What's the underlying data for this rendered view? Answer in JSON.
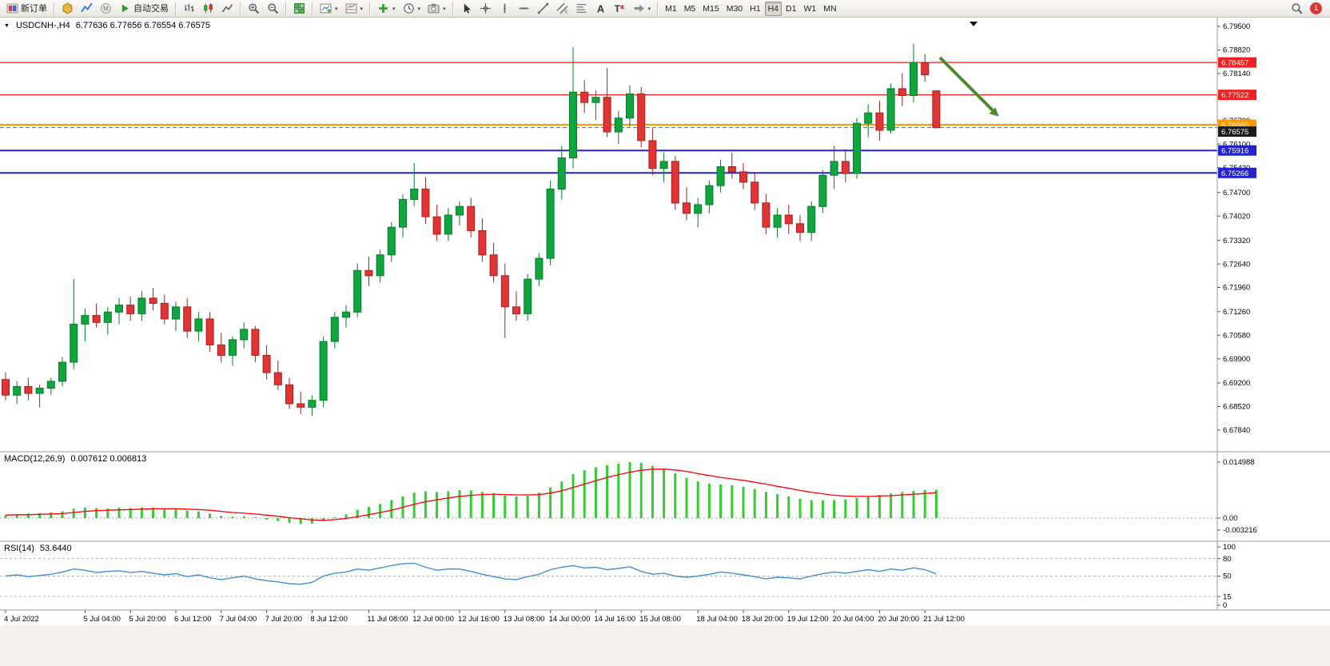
{
  "toolbar": {
    "groups": [
      [
        {
          "name": "new-order-button",
          "icon": "neworder",
          "label": "新订单"
        }
      ],
      [
        {
          "name": "market-button",
          "icon": "market"
        },
        {
          "name": "signals-button",
          "icon": "signals"
        },
        {
          "name": "community-button",
          "icon": "mql"
        },
        {
          "name": "autotrade-button",
          "icon": "play",
          "label": "自动交易"
        }
      ],
      [
        {
          "name": "bar-chart-button",
          "icon": "bars"
        },
        {
          "name": "candlestick-chart-button",
          "icon": "candles"
        },
        {
          "name": "line-chart-button",
          "icon": "linechart"
        }
      ],
      [
        {
          "name": "zoom-in-button",
          "icon": "zoomin"
        },
        {
          "name": "zoom-out-button",
          "icon": "zoomout"
        }
      ],
      [
        {
          "name": "tile-windows-button",
          "icon": "tiles"
        }
      ],
      [
        {
          "name": "new-chart-button",
          "icon": "newchart",
          "dropdown": true
        },
        {
          "name": "profiles-button",
          "icon": "profiles",
          "dropdown": true
        }
      ],
      [
        {
          "name": "add-indicator-button",
          "icon": "plus",
          "dropdown": true
        },
        {
          "name": "periods-button",
          "icon": "clock",
          "dropdown": true
        },
        {
          "name": "template-button",
          "icon": "snapshot",
          "dropdown": true
        }
      ],
      [
        {
          "name": "cursor-button",
          "icon": "cursor"
        },
        {
          "name": "crosshair-button",
          "icon": "crosshair"
        },
        {
          "name": "vertical-line-button",
          "icon": "vline"
        },
        {
          "name": "horizontal-line-button",
          "icon": "hline"
        },
        {
          "name": "trendline-button",
          "icon": "tline"
        },
        {
          "name": "equidistant-channel-button",
          "icon": "channel"
        },
        {
          "name": "fibonacci-button",
          "icon": "fibo"
        },
        {
          "name": "text-button",
          "icon": "text"
        },
        {
          "name": "label-button",
          "icon": "label"
        },
        {
          "name": "shapes-button",
          "icon": "shapes",
          "dropdown": true
        }
      ]
    ],
    "timeframes": [
      "M1",
      "M5",
      "M15",
      "M30",
      "H1",
      "H4",
      "D1",
      "W1",
      "MN"
    ],
    "active_timeframe": "H4",
    "notification_count": "1"
  },
  "chart_data": {
    "type": "candlestick",
    "title_symbol": "USDCNH-,H4",
    "ohlc_text": "6.77636 6.77656 6.76554 6.76575",
    "ylim": [
      6.6733,
      6.7975
    ],
    "colors": {
      "bull": "#10a63e",
      "bull_dark": "#067a2a",
      "bear": "#e23434",
      "bear_dark": "#a32020",
      "macd_hist": "#33cc33",
      "macd_signal": "#ff0000",
      "rsi_line": "#3f8fd6",
      "arrow": "#4a8b2c"
    },
    "hlines": [
      {
        "price": 6.78457,
        "label": "6.78457",
        "color": "#ee2222",
        "width": 1.2
      },
      {
        "price": 6.77522,
        "label": "6.77522",
        "color": "#ee2222",
        "width": 1.2
      },
      {
        "price": 6.7666,
        "label": "6.76660",
        "color": "#ff9900",
        "width": 2
      },
      {
        "price": 6.75916,
        "label": "6.75916",
        "color": "#2323cc",
        "width": 2
      },
      {
        "price": 6.75266,
        "label": "6.75266",
        "color": "#2323cc",
        "width": 2
      }
    ],
    "bid": {
      "price": 6.76575,
      "label": "6.76575",
      "color": "#1c1c1c"
    },
    "price_axis": [
      6.795,
      6.7882,
      6.7814,
      6.7746,
      6.7678,
      6.761,
      6.7542,
      6.747,
      6.7402,
      6.7332,
      6.7264,
      6.7196,
      6.7126,
      6.7058,
      6.699,
      6.692,
      6.6852,
      6.6784
    ],
    "time_labels": [
      {
        "i": 0,
        "t": "4 Jul 2022"
      },
      {
        "i": 7,
        "t": "5 Jul 04:00"
      },
      {
        "i": 11,
        "t": "5 Jul 20:00"
      },
      {
        "i": 15,
        "t": "6 Jul 12:00"
      },
      {
        "i": 19,
        "t": "7 Jul 04:00"
      },
      {
        "i": 23,
        "t": "7 Jul 20:00"
      },
      {
        "i": 27,
        "t": "8 Jul 12:00"
      },
      {
        "i": 32,
        "t": "11 Jul 08:00"
      },
      {
        "i": 36,
        "t": "12 Jul 00:00"
      },
      {
        "i": 40,
        "t": "12 Jul 16:00"
      },
      {
        "i": 44,
        "t": "13 Jul 08:00"
      },
      {
        "i": 48,
        "t": "14 Jul 00:00"
      },
      {
        "i": 52,
        "t": "14 Jul 16:00"
      },
      {
        "i": 56,
        "t": "15 Jul 08:00"
      },
      {
        "i": 61,
        "t": "18 Jul 04:00"
      },
      {
        "i": 65,
        "t": "18 Jul 20:00"
      },
      {
        "i": 69,
        "t": "19 Jul 12:00"
      },
      {
        "i": 73,
        "t": "20 Jul 04:00"
      },
      {
        "i": 77,
        "t": "20 Jul 20:00"
      },
      {
        "i": 81,
        "t": "21 Jul 12:00"
      }
    ],
    "candles": [
      [
        6.693,
        6.695,
        6.687,
        6.6885
      ],
      [
        6.6885,
        6.6925,
        6.686,
        6.691
      ],
      [
        6.691,
        6.6935,
        6.687,
        6.689
      ],
      [
        6.689,
        6.6915,
        6.685,
        6.6905
      ],
      [
        6.6905,
        6.6935,
        6.6885,
        6.6925
      ],
      [
        6.6925,
        6.6995,
        6.691,
        6.698
      ],
      [
        6.698,
        6.722,
        6.696,
        6.709
      ],
      [
        6.709,
        6.7135,
        6.704,
        6.7115
      ],
      [
        6.7115,
        6.715,
        6.708,
        6.7095
      ],
      [
        6.7095,
        6.714,
        6.706,
        6.7125
      ],
      [
        6.7125,
        6.7165,
        6.709,
        6.7145
      ],
      [
        6.7145,
        6.717,
        6.71,
        6.712
      ],
      [
        6.712,
        6.7185,
        6.71,
        6.7165
      ],
      [
        6.7165,
        6.7195,
        6.713,
        6.715
      ],
      [
        6.715,
        6.7175,
        6.709,
        6.7105
      ],
      [
        6.7105,
        6.7155,
        6.707,
        6.714
      ],
      [
        6.714,
        6.7165,
        6.705,
        6.707
      ],
      [
        6.707,
        6.7125,
        6.704,
        6.7105
      ],
      [
        6.7105,
        6.7125,
        6.701,
        6.703
      ],
      [
        6.703,
        6.7065,
        6.698,
        6.7
      ],
      [
        6.7,
        6.7055,
        6.697,
        6.7045
      ],
      [
        6.7045,
        6.7095,
        6.702,
        6.7075
      ],
      [
        6.7075,
        6.7085,
        6.698,
        6.7
      ],
      [
        6.7,
        6.703,
        6.693,
        6.695
      ],
      [
        6.695,
        6.6985,
        6.69,
        6.6915
      ],
      [
        6.6915,
        6.6935,
        6.6845,
        6.686
      ],
      [
        6.686,
        6.6895,
        6.683,
        6.685
      ],
      [
        6.685,
        6.6885,
        6.6825,
        6.687
      ],
      [
        6.687,
        6.7055,
        6.685,
        6.704
      ],
      [
        6.704,
        6.7125,
        6.702,
        6.711
      ],
      [
        6.711,
        6.7145,
        6.708,
        6.7125
      ],
      [
        6.7125,
        6.7265,
        6.711,
        6.7245
      ],
      [
        6.7245,
        6.7285,
        6.72,
        6.723
      ],
      [
        6.723,
        6.7305,
        6.721,
        6.729
      ],
      [
        6.729,
        6.7385,
        6.727,
        6.737
      ],
      [
        6.737,
        6.7465,
        6.734,
        6.745
      ],
      [
        6.745,
        6.7555,
        6.743,
        6.748
      ],
      [
        6.748,
        6.7515,
        6.738,
        6.74
      ],
      [
        6.74,
        6.7435,
        6.733,
        6.735
      ],
      [
        6.735,
        6.7425,
        6.733,
        6.7405
      ],
      [
        6.7405,
        6.7445,
        6.7375,
        6.743
      ],
      [
        6.743,
        6.7455,
        6.734,
        6.736
      ],
      [
        6.736,
        6.7395,
        6.727,
        6.729
      ],
      [
        6.729,
        6.7325,
        6.721,
        6.723
      ],
      [
        6.723,
        6.7265,
        6.705,
        6.714
      ],
      [
        6.714,
        6.7185,
        6.71,
        6.712
      ],
      [
        6.712,
        6.7235,
        6.71,
        6.722
      ],
      [
        6.722,
        6.7295,
        6.72,
        6.728
      ],
      [
        6.728,
        6.7505,
        6.726,
        6.748
      ],
      [
        6.748,
        6.7605,
        6.745,
        6.757
      ],
      [
        6.757,
        6.789,
        6.754,
        6.776
      ],
      [
        6.776,
        6.7795,
        6.77,
        6.773
      ],
      [
        6.773,
        6.7765,
        6.768,
        6.7745
      ],
      [
        6.7745,
        6.783,
        6.763,
        6.7645
      ],
      [
        6.7645,
        6.7705,
        6.761,
        6.7685
      ],
      [
        6.7685,
        6.778,
        6.766,
        6.7755
      ],
      [
        6.7755,
        6.7775,
        6.76,
        6.762
      ],
      [
        6.762,
        6.7655,
        6.752,
        6.754
      ],
      [
        6.754,
        6.7585,
        6.75,
        6.756
      ],
      [
        6.756,
        6.7575,
        6.742,
        6.744
      ],
      [
        6.744,
        6.7485,
        6.739,
        6.741
      ],
      [
        6.741,
        6.7455,
        6.737,
        6.7435
      ],
      [
        6.7435,
        6.7505,
        6.741,
        6.749
      ],
      [
        6.749,
        6.7565,
        6.747,
        6.7545
      ],
      [
        6.7545,
        6.7585,
        6.751,
        6.753
      ],
      [
        6.753,
        6.7555,
        6.748,
        6.75
      ],
      [
        6.75,
        6.7525,
        6.742,
        6.744
      ],
      [
        6.744,
        6.7465,
        6.735,
        6.737
      ],
      [
        6.737,
        6.7425,
        6.734,
        6.7405
      ],
      [
        6.7405,
        6.7435,
        6.735,
        6.738
      ],
      [
        6.738,
        6.7405,
        6.733,
        6.7355
      ],
      [
        6.7355,
        6.7445,
        6.733,
        6.743
      ],
      [
        6.743,
        6.7535,
        6.741,
        6.752
      ],
      [
        6.752,
        6.7605,
        6.748,
        6.756
      ],
      [
        6.756,
        6.7595,
        6.75,
        6.7525
      ],
      [
        6.7525,
        6.7685,
        6.751,
        6.767
      ],
      [
        6.767,
        6.7725,
        6.763,
        6.77
      ],
      [
        6.77,
        6.7735,
        6.762,
        6.765
      ],
      [
        6.765,
        6.7785,
        6.764,
        6.777
      ],
      [
        6.777,
        6.7815,
        6.772,
        6.775
      ],
      [
        6.775,
        6.79,
        6.773,
        6.7845
      ],
      [
        6.7845,
        6.787,
        6.779,
        6.781
      ],
      [
        6.77636,
        6.77656,
        6.76554,
        6.76575
      ]
    ],
    "macd": {
      "label": "MACD(12,26,9)",
      "values_text": "0.007612 0.006813",
      "axis": [
        {
          "v": 0.014988,
          "t": "0.014988"
        },
        {
          "v": 0,
          "t": "0.00"
        },
        {
          "v": -0.003216,
          "t": "-0.003216"
        }
      ],
      "hist": [
        0.0008,
        0.001,
        0.0012,
        0.0013,
        0.0015,
        0.0018,
        0.0025,
        0.0028,
        0.0027,
        0.0026,
        0.0028,
        0.0027,
        0.0029,
        0.0028,
        0.0025,
        0.0024,
        0.002,
        0.0018,
        0.0012,
        0.0006,
        0.0004,
        0.0005,
        0.0002,
        -0.0004,
        -0.0008,
        -0.0013,
        -0.0016,
        -0.0015,
        -0.0008,
        0.0002,
        0.001,
        0.0022,
        0.003,
        0.0038,
        0.0048,
        0.0058,
        0.0068,
        0.0072,
        0.007,
        0.0072,
        0.0075,
        0.0074,
        0.007,
        0.0066,
        0.006,
        0.0058,
        0.006,
        0.0068,
        0.0082,
        0.0098,
        0.0118,
        0.0128,
        0.0136,
        0.0142,
        0.0146,
        0.015,
        0.0148,
        0.014,
        0.0132,
        0.012,
        0.0108,
        0.0098,
        0.0092,
        0.009,
        0.0088,
        0.0084,
        0.0078,
        0.007,
        0.0064,
        0.0058,
        0.0052,
        0.0048,
        0.0047,
        0.0048,
        0.005,
        0.0054,
        0.0058,
        0.0062,
        0.0066,
        0.007,
        0.0073,
        0.0075,
        0.007612
      ],
      "signal": [
        0.0008,
        0.0009,
        0.0009,
        0.001,
        0.0011,
        0.0012,
        0.0015,
        0.0018,
        0.002,
        0.0021,
        0.0022,
        0.0023,
        0.0024,
        0.0025,
        0.0025,
        0.0025,
        0.0024,
        0.0023,
        0.0021,
        0.0018,
        0.0015,
        0.0013,
        0.0011,
        0.0008,
        0.0005,
        0.0001,
        -0.0002,
        -0.0005,
        -0.0006,
        -0.0004,
        -0.0001,
        0.0004,
        0.0009,
        0.0015,
        0.0021,
        0.0029,
        0.0037,
        0.0044,
        0.0049,
        0.0054,
        0.0058,
        0.0061,
        0.0063,
        0.0064,
        0.0063,
        0.0062,
        0.0062,
        0.0063,
        0.0067,
        0.0073,
        0.0082,
        0.0091,
        0.01,
        0.0109,
        0.0116,
        0.0123,
        0.0128,
        0.0131,
        0.0131,
        0.0129,
        0.0125,
        0.0119,
        0.0114,
        0.0109,
        0.0105,
        0.0101,
        0.0096,
        0.0091,
        0.0085,
        0.008,
        0.0074,
        0.0069,
        0.0065,
        0.0061,
        0.0059,
        0.0058,
        0.0058,
        0.0059,
        0.006,
        0.0062,
        0.0064,
        0.0066,
        0.006813
      ]
    },
    "rsi": {
      "label": "RSI(14)",
      "value_text": "53.6440",
      "levels": [
        {
          "v": 100,
          "t": "100",
          "dash": false
        },
        {
          "v": 80,
          "t": "80",
          "dash": true
        },
        {
          "v": 50,
          "t": "50",
          "dash": true
        },
        {
          "v": 15,
          "t": "15",
          "dash": true
        },
        {
          "v": 0,
          "t": "0",
          "dash": false
        }
      ],
      "points": [
        50,
        52,
        49,
        51,
        53,
        57,
        62,
        60,
        56,
        58,
        59,
        56,
        58,
        55,
        52,
        54,
        49,
        52,
        47,
        44,
        47,
        50,
        45,
        42,
        40,
        37,
        36,
        39,
        50,
        55,
        57,
        62,
        60,
        64,
        68,
        71,
        72,
        65,
        60,
        62,
        62,
        58,
        53,
        49,
        45,
        44,
        49,
        53,
        61,
        65,
        68,
        64,
        65,
        61,
        63,
        66,
        58,
        53,
        55,
        50,
        48,
        50,
        53,
        57,
        55,
        52,
        49,
        45,
        48,
        47,
        45,
        50,
        54,
        57,
        55,
        58,
        61,
        58,
        62,
        60,
        64,
        61,
        53.64
      ]
    },
    "arrow_annotation": {
      "direction": "down-right",
      "color": "#4a8b2c"
    }
  }
}
